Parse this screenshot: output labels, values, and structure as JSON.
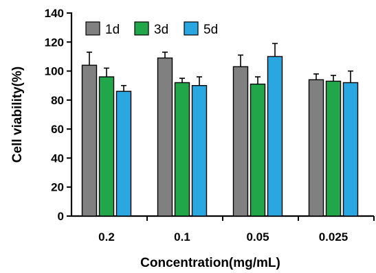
{
  "chart_data": {
    "type": "bar",
    "title": "",
    "xlabel": "Concentration(mg/mL)",
    "ylabel": "Cell viability(%)",
    "ylim": [
      0,
      140
    ],
    "yticks": [
      0,
      20,
      40,
      60,
      80,
      100,
      120,
      140
    ],
    "grid": false,
    "legend_position": "top-left",
    "categories": [
      "0.2",
      "0.1",
      "0.05",
      "0.025"
    ],
    "series": [
      {
        "name": "1d",
        "color": "#808080",
        "values": [
          104,
          109,
          103,
          94
        ],
        "errors": [
          9,
          4,
          8,
          4
        ]
      },
      {
        "name": "3d",
        "color": "#22a64a",
        "values": [
          96,
          92,
          91,
          93
        ],
        "errors": [
          6,
          3,
          5,
          4
        ]
      },
      {
        "name": "5d",
        "color": "#2aa7e0",
        "values": [
          86,
          90,
          110,
          92
        ],
        "errors": [
          4,
          6,
          9,
          8
        ]
      }
    ]
  }
}
